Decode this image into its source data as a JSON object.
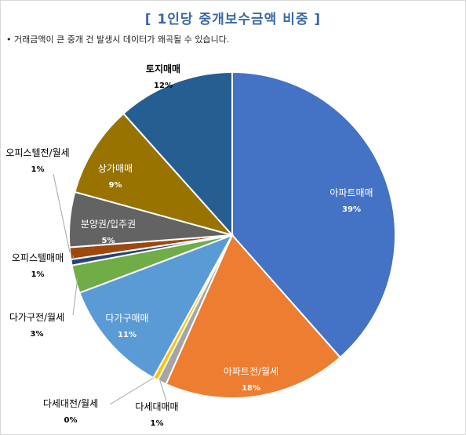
{
  "title": "[ 1인당 중개보수금액 비중 ]",
  "note": "• 거래금액이 큰 중개 건 발생시 데이터가 왜곡될 수 있습니다.",
  "chart_data": {
    "type": "pie",
    "start_angle_deg": 0,
    "direction": "clockwise",
    "slices": [
      {
        "name": "아파트매매",
        "pct_label": "39%",
        "value": 38.8,
        "color": "#4472c4",
        "label_inside": true
      },
      {
        "name": "아파트전/월세",
        "pct_label": "18%",
        "value": 18.3,
        "color": "#ed7d31",
        "label_inside": true
      },
      {
        "name": "다세대매매",
        "pct_label": "1%",
        "value": 0.9,
        "color": "#a5a5a5",
        "label_inside": false
      },
      {
        "name": "다세대전/월세",
        "pct_label": "0%",
        "value": 0.5,
        "color": "#ffc000",
        "label_inside": false
      },
      {
        "name": "다가구매매",
        "pct_label": "11%",
        "value": 11.3,
        "color": "#5b9bd5",
        "label_inside": true
      },
      {
        "name": "다가구전/월세",
        "pct_label": "3%",
        "value": 2.8,
        "color": "#70ad47",
        "label_inside": false
      },
      {
        "name": "오피스텔매매",
        "pct_label": "1%",
        "value": 0.6,
        "color": "#264478",
        "label_inside": false
      },
      {
        "name": "오피스텔전/월세",
        "pct_label": "1%",
        "value": 1.2,
        "color": "#9e480e",
        "label_inside": false
      },
      {
        "name": "분양권/입주권",
        "pct_label": "5%",
        "value": 5.5,
        "color": "#636363",
        "label_inside": true
      },
      {
        "name": "상가매매",
        "pct_label": "9%",
        "value": 9.2,
        "color": "#997300",
        "label_inside": true
      },
      {
        "name": "토지매매",
        "pct_label": "12%",
        "value": 11.7,
        "color": "#255e91",
        "label_inside": true
      }
    ]
  }
}
